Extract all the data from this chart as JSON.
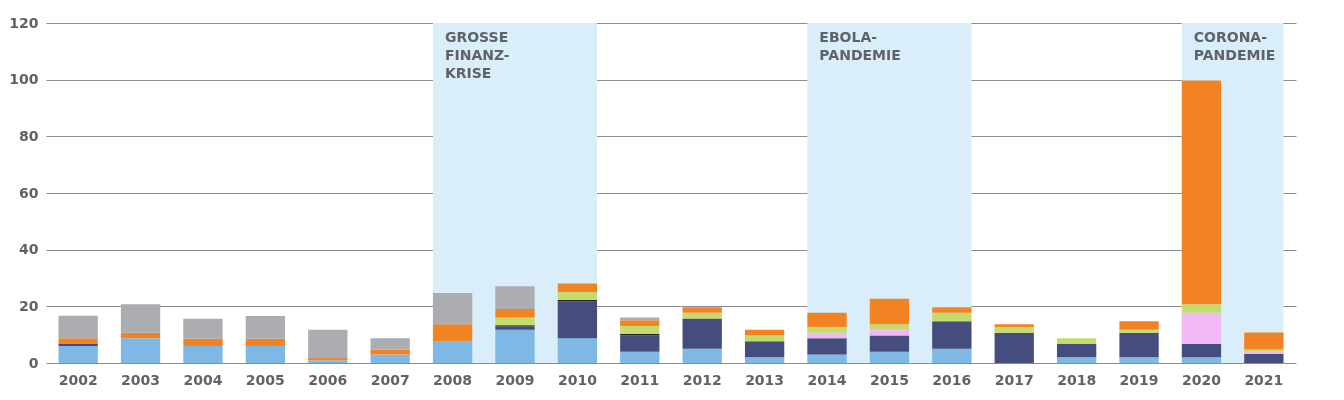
{
  "chart_data": {
    "type": "bar",
    "stacked": true,
    "categories": [
      "2002",
      "2003",
      "2004",
      "2005",
      "2006",
      "2007",
      "2008",
      "2009",
      "2010",
      "2011",
      "2012",
      "2013",
      "2014",
      "2015",
      "2016",
      "2017",
      "2018",
      "2019",
      "2020",
      "2021"
    ],
    "series": [
      {
        "color": "#7eb8e4",
        "values": [
          6,
          8.7,
          6,
          6,
          1,
          3,
          7.7,
          11.7,
          8.7,
          4,
          5,
          2,
          3,
          4,
          5,
          0,
          2,
          2,
          2,
          0
        ]
      },
      {
        "color": "#454d7f",
        "values": [
          0.7,
          0,
          0,
          0,
          0,
          0,
          0,
          1.2,
          13.1,
          5.8,
          10.7,
          5.7,
          5.7,
          5.7,
          9.7,
          10.7,
          4.7,
          8.7,
          4.7,
          3.2
        ]
      },
      {
        "color": "#222222",
        "values": [
          0,
          0,
          0,
          0,
          0,
          0,
          0,
          0.4,
          0.4,
          0.4,
          0,
          0,
          0,
          0,
          0,
          0,
          0,
          0,
          0,
          0
        ]
      },
      {
        "color": "#f0b8f5",
        "values": [
          0,
          0,
          0,
          0,
          0,
          0,
          0,
          0,
          0,
          0,
          0,
          0,
          2,
          2,
          0,
          0,
          0,
          0,
          11,
          0.9
        ]
      },
      {
        "color": "#c4dc6c",
        "values": [
          0,
          0,
          0,
          0,
          0,
          0,
          0,
          2.8,
          2.9,
          2.9,
          2,
          2,
          2,
          2,
          3,
          2,
          2,
          1,
          3,
          0.7
        ]
      },
      {
        "color": "#f28322",
        "values": [
          2,
          2,
          2.6,
          2.6,
          1,
          1.7,
          6,
          3,
          3,
          2,
          2,
          2,
          5,
          9,
          2,
          1,
          0,
          3,
          79,
          6
        ]
      },
      {
        "color": "#abadb0",
        "values": [
          8,
          10,
          7,
          8,
          9.7,
          4,
          11,
          8,
          0,
          1,
          0,
          0,
          0,
          0,
          0,
          0,
          0,
          0,
          0,
          0
        ]
      }
    ],
    "ylim": [
      0,
      120
    ],
    "yticks": [
      0,
      20,
      40,
      60,
      80,
      100,
      120
    ],
    "grid": "y",
    "bands": [
      {
        "axis": "x",
        "from": "2008",
        "to": "2010",
        "label": "GROSSE\nFINANZ-\nKRISE",
        "color": "#d9eef8"
      },
      {
        "axis": "x",
        "from": "2014",
        "to": "2016",
        "label": "EBOLA-\nPANDEMIE",
        "color": "#d9eef8"
      },
      {
        "axis": "x",
        "from": "2020",
        "to": "2021",
        "label": "CORONA-\nPANDEMIE",
        "color": "#d9eef8"
      }
    ]
  }
}
